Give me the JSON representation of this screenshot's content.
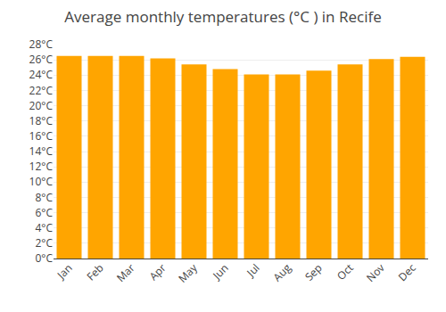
{
  "chart_data": {
    "type": "bar",
    "title": "Average monthly temperatures (°C ) in Recife",
    "categories": [
      "Jan",
      "Feb",
      "Mar",
      "Apr",
      "May",
      "Jun",
      "Jul",
      "Aug",
      "Sep",
      "Oct",
      "Nov",
      "Dec"
    ],
    "values": [
      26.5,
      26.5,
      26.5,
      26.2,
      25.4,
      24.8,
      24.1,
      24.1,
      24.6,
      25.4,
      26.1,
      26.4
    ],
    "color": "#FFA500",
    "ylim": [
      0,
      28
    ],
    "yticks": [
      {
        "value": 0,
        "label": "0°C"
      },
      {
        "value": 2,
        "label": "2°C"
      },
      {
        "value": 4,
        "label": "4°C"
      },
      {
        "value": 6,
        "label": "6°C"
      },
      {
        "value": 8,
        "label": "8°C"
      },
      {
        "value": 10,
        "label": "10°C"
      },
      {
        "value": 12,
        "label": "12°C"
      },
      {
        "value": 14,
        "label": "14°C"
      },
      {
        "value": 16,
        "label": "16°C"
      },
      {
        "value": 18,
        "label": "18°C"
      },
      {
        "value": 20,
        "label": "20°C"
      },
      {
        "value": 22,
        "label": "22°C"
      },
      {
        "value": 24,
        "label": "24°C"
      },
      {
        "value": 26,
        "label": "26°C"
      },
      {
        "value": 28,
        "label": "28°C"
      }
    ],
    "grid": true
  }
}
